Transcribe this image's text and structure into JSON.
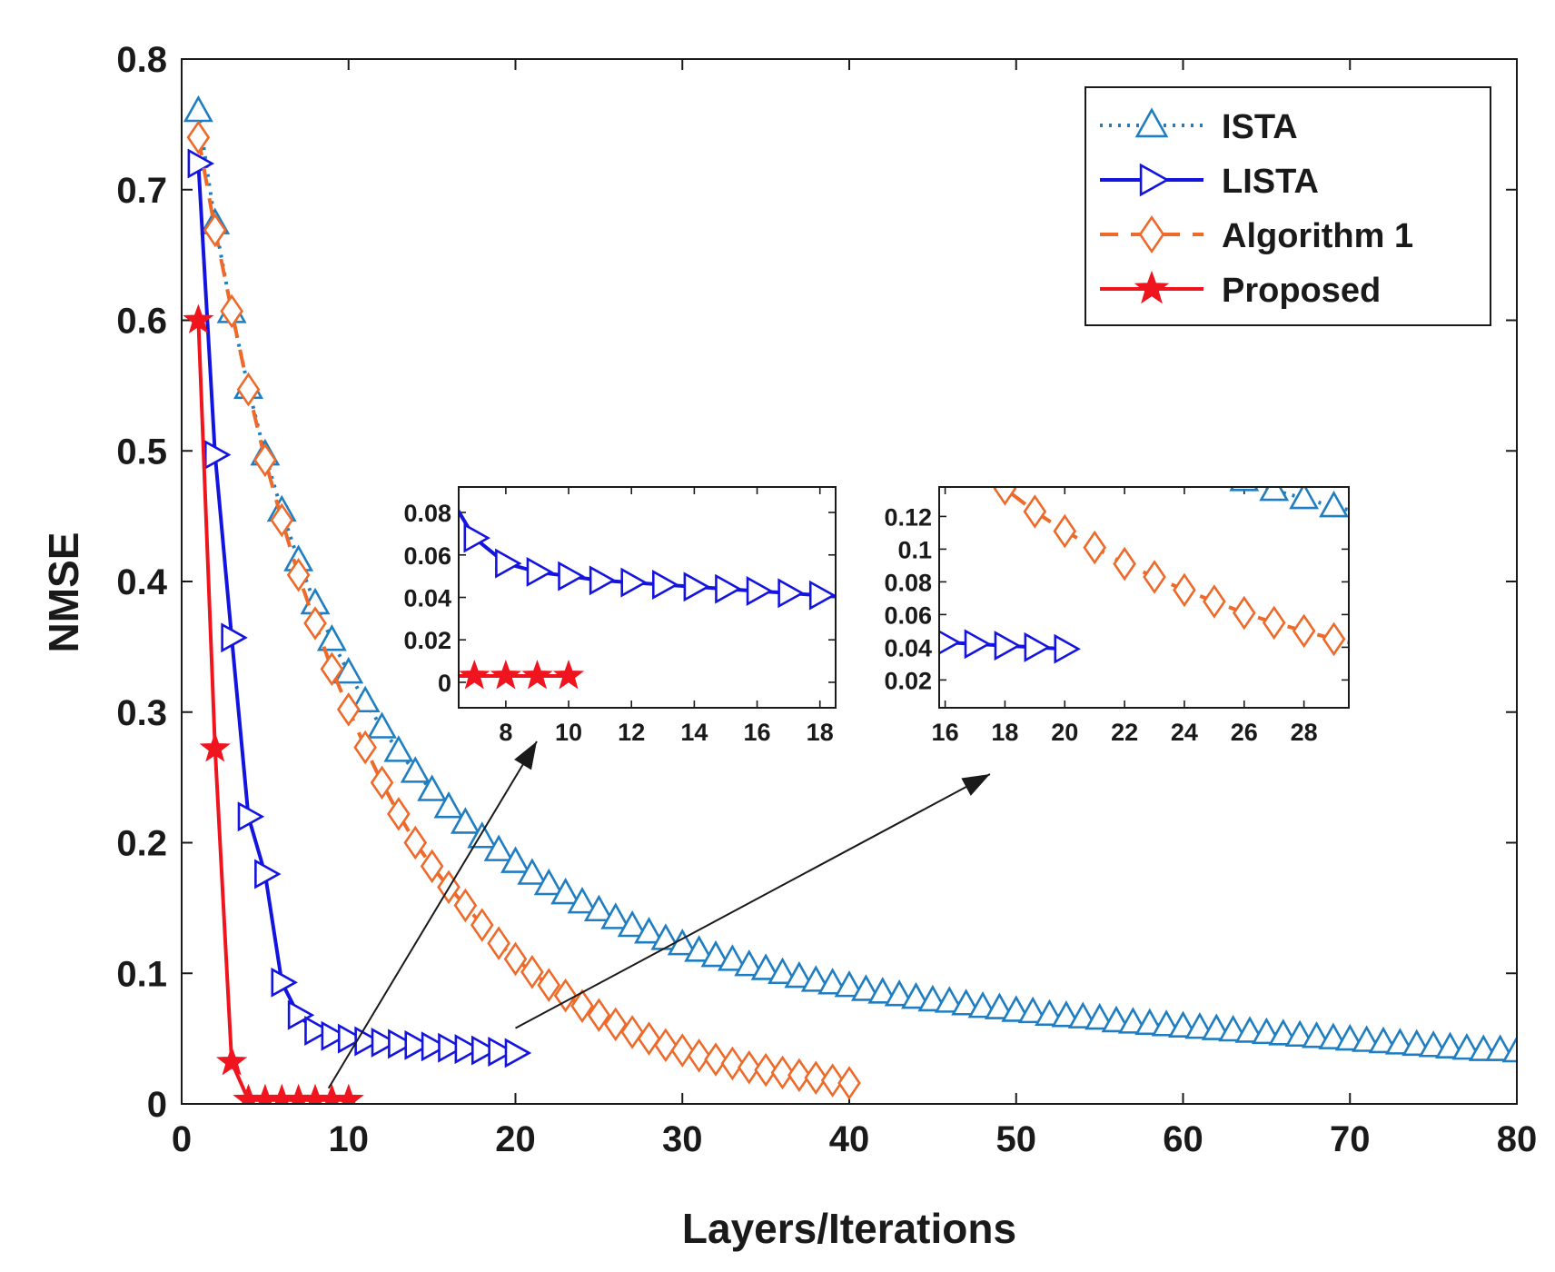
{
  "chart_data": {
    "type": "line",
    "title": "",
    "xlabel": "Layers/Iterations",
    "ylabel": "NMSE",
    "xlim": [
      0,
      80
    ],
    "ylim": [
      0,
      0.8
    ],
    "xticks": [
      "0",
      "10",
      "20",
      "30",
      "40",
      "50",
      "60",
      "70",
      "80"
    ],
    "yticks": [
      "0",
      "0.1",
      "0.2",
      "0.3",
      "0.4",
      "0.5",
      "0.6",
      "0.7",
      "0.8"
    ],
    "grid": false,
    "legend_position": "top-right",
    "series": [
      {
        "name": "ISTA",
        "color": "#1f7ec1",
        "line_style": "dotted",
        "marker": "triangle-up",
        "x": [
          1,
          2,
          3,
          4,
          5,
          6,
          7,
          8,
          9,
          10,
          11,
          12,
          13,
          14,
          15,
          16,
          17,
          18,
          19,
          20,
          21,
          22,
          23,
          24,
          25,
          26,
          27,
          28,
          29,
          30,
          31,
          32,
          33,
          34,
          35,
          36,
          37,
          38,
          39,
          40,
          41,
          42,
          43,
          44,
          45,
          46,
          47,
          48,
          49,
          50,
          51,
          52,
          53,
          54,
          55,
          56,
          57,
          58,
          59,
          60,
          61,
          62,
          63,
          64,
          65,
          66,
          67,
          68,
          69,
          70,
          71,
          72,
          73,
          74,
          75,
          76,
          77,
          78,
          79,
          80
        ],
        "values": [
          0.76,
          0.674,
          0.606,
          0.548,
          0.497,
          0.454,
          0.416,
          0.383,
          0.355,
          0.33,
          0.308,
          0.288,
          0.27,
          0.254,
          0.24,
          0.227,
          0.215,
          0.204,
          0.194,
          0.185,
          0.176,
          0.168,
          0.161,
          0.154,
          0.148,
          0.142,
          0.136,
          0.131,
          0.126,
          0.122,
          0.117,
          0.113,
          0.11,
          0.106,
          0.103,
          0.1,
          0.097,
          0.094,
          0.092,
          0.09,
          0.087,
          0.085,
          0.083,
          0.081,
          0.079,
          0.078,
          0.076,
          0.074,
          0.073,
          0.071,
          0.07,
          0.068,
          0.067,
          0.066,
          0.065,
          0.063,
          0.062,
          0.061,
          0.06,
          0.059,
          0.058,
          0.057,
          0.056,
          0.055,
          0.054,
          0.053,
          0.052,
          0.051,
          0.05,
          0.049,
          0.048,
          0.047,
          0.046,
          0.045,
          0.044,
          0.043,
          0.042,
          0.041,
          0.041,
          0.04
        ]
      },
      {
        "name": "LISTA",
        "color": "#1414e0",
        "line_style": "solid",
        "marker": "triangle-right",
        "x": [
          1,
          2,
          3,
          4,
          5,
          6,
          7,
          8,
          9,
          10,
          11,
          12,
          13,
          14,
          15,
          16,
          17,
          18,
          19,
          20
        ],
        "values": [
          0.72,
          0.497,
          0.357,
          0.22,
          0.176,
          0.093,
          0.068,
          0.056,
          0.052,
          0.05,
          0.048,
          0.047,
          0.046,
          0.045,
          0.044,
          0.043,
          0.042,
          0.041,
          0.04,
          0.039
        ]
      },
      {
        "name": "Algorithm 1",
        "color": "#ee6a2a",
        "line_style": "dashed",
        "marker": "diamond",
        "x": [
          1,
          2,
          3,
          4,
          5,
          6,
          7,
          8,
          9,
          10,
          11,
          12,
          13,
          14,
          15,
          16,
          17,
          18,
          19,
          20,
          21,
          22,
          23,
          24,
          25,
          26,
          27,
          28,
          29,
          30,
          31,
          32,
          33,
          34,
          35,
          36,
          37,
          38,
          39,
          40
        ],
        "values": [
          0.74,
          0.669,
          0.607,
          0.547,
          0.493,
          0.447,
          0.405,
          0.368,
          0.333,
          0.302,
          0.273,
          0.246,
          0.222,
          0.2,
          0.182,
          0.166,
          0.152,
          0.137,
          0.123,
          0.111,
          0.101,
          0.091,
          0.083,
          0.075,
          0.068,
          0.061,
          0.055,
          0.05,
          0.045,
          0.041,
          0.037,
          0.034,
          0.031,
          0.028,
          0.026,
          0.024,
          0.022,
          0.02,
          0.018,
          0.016
        ]
      },
      {
        "name": "Proposed",
        "color": "#f0141e",
        "line_style": "solid",
        "marker": "star",
        "x": [
          1,
          2,
          3,
          4,
          5,
          6,
          7,
          8,
          9,
          10
        ],
        "values": [
          0.6,
          0.272,
          0.032,
          0.003,
          0.003,
          0.003,
          0.003,
          0.003,
          0.003,
          0.003
        ]
      }
    ],
    "insets": [
      {
        "position": "center-left",
        "xlim": [
          6.5,
          18.5
        ],
        "ylim": [
          -0.012,
          0.092
        ],
        "xticks": [
          "8",
          "10",
          "12",
          "14",
          "16",
          "18"
        ],
        "yticks": [
          "0",
          "0.02",
          "0.04",
          "0.06",
          "0.08"
        ],
        "series_shown": [
          "LISTA",
          "Proposed"
        ],
        "zoom_x_range": [
          7,
          18
        ]
      },
      {
        "position": "center-right",
        "xlim": [
          15.8,
          29.5
        ],
        "ylim": [
          0.003,
          0.138
        ],
        "xticks": [
          "16",
          "18",
          "20",
          "22",
          "24",
          "26",
          "28"
        ],
        "yticks": [
          "0.02",
          "0.04",
          "0.06",
          "0.08",
          "0.1",
          "0.12"
        ],
        "series_shown": [
          "ISTA",
          "LISTA",
          "Algorithm 1"
        ],
        "zoom_x_range": [
          16,
          29
        ]
      }
    ]
  }
}
